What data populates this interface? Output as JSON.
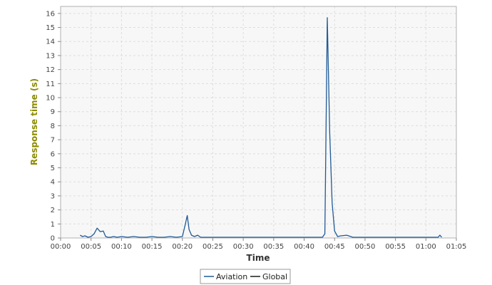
{
  "colors": {
    "aviation": "#1f5a96",
    "global": "#1a1a1a",
    "ylabel": "#8c8c00",
    "grid": "#dddddd",
    "plot_bg": "#f7f7f7"
  },
  "chart_data": {
    "type": "line",
    "xlabel": "Time",
    "ylabel": "Response time (s)",
    "x_unit": "minutes",
    "xlim": [
      0,
      65
    ],
    "ylim": [
      0,
      16.5
    ],
    "x_ticks": [
      {
        "value": 0,
        "label": "00:00"
      },
      {
        "value": 5,
        "label": "00:05"
      },
      {
        "value": 10,
        "label": "00:10"
      },
      {
        "value": 15,
        "label": "00:15"
      },
      {
        "value": 20,
        "label": "00:20"
      },
      {
        "value": 25,
        "label": "00:25"
      },
      {
        "value": 30,
        "label": "00:30"
      },
      {
        "value": 35,
        "label": "00:35"
      },
      {
        "value": 40,
        "label": "00:40"
      },
      {
        "value": 45,
        "label": "00:45"
      },
      {
        "value": 50,
        "label": "00:50"
      },
      {
        "value": 55,
        "label": "00:55"
      },
      {
        "value": 60,
        "label": "01:00"
      },
      {
        "value": 65,
        "label": "01:05"
      }
    ],
    "y_ticks": [
      0,
      1,
      2,
      3,
      4,
      5,
      6,
      7,
      8,
      9,
      10,
      11,
      12,
      13,
      14,
      15,
      16
    ],
    "grid": true,
    "legend_position": "bottom-center",
    "series": [
      {
        "name": "Aviation",
        "color": "#1f5a96",
        "points": [
          [
            3.2,
            0.2
          ],
          [
            3.6,
            0.1
          ],
          [
            4.0,
            0.15
          ],
          [
            4.5,
            0.05
          ],
          [
            5.0,
            0.1
          ],
          [
            5.5,
            0.3
          ],
          [
            6.0,
            0.7
          ],
          [
            6.5,
            0.45
          ],
          [
            7.0,
            0.5
          ],
          [
            7.4,
            0.1
          ],
          [
            7.8,
            0.05
          ],
          [
            8.2,
            0.05
          ],
          [
            8.7,
            0.1
          ],
          [
            9.3,
            0.05
          ],
          [
            10.0,
            0.1
          ],
          [
            11.0,
            0.05
          ],
          [
            12.0,
            0.1
          ],
          [
            13.0,
            0.05
          ],
          [
            14.0,
            0.05
          ],
          [
            15.0,
            0.1
          ],
          [
            16.0,
            0.05
          ],
          [
            17.0,
            0.05
          ],
          [
            18.0,
            0.1
          ],
          [
            19.0,
            0.05
          ],
          [
            20.0,
            0.1
          ],
          [
            20.5,
            1.0
          ],
          [
            20.8,
            1.6
          ],
          [
            21.1,
            0.6
          ],
          [
            21.5,
            0.2
          ],
          [
            22.0,
            0.1
          ],
          [
            22.5,
            0.2
          ],
          [
            23.0,
            0.05
          ],
          [
            24.0,
            0.05
          ],
          [
            25.0,
            0.05
          ],
          [
            26.0,
            0.05
          ],
          [
            28.0,
            0.05
          ],
          [
            30.0,
            0.05
          ],
          [
            32.0,
            0.05
          ],
          [
            34.0,
            0.05
          ],
          [
            36.0,
            0.05
          ],
          [
            38.0,
            0.05
          ],
          [
            40.0,
            0.05
          ],
          [
            42.0,
            0.05
          ],
          [
            43.0,
            0.05
          ],
          [
            43.4,
            0.3
          ],
          [
            43.8,
            15.7
          ],
          [
            44.2,
            7.5
          ],
          [
            44.6,
            2.5
          ],
          [
            45.0,
            0.5
          ],
          [
            45.5,
            0.1
          ],
          [
            46.0,
            0.15
          ],
          [
            47.0,
            0.2
          ],
          [
            48.0,
            0.05
          ],
          [
            50.0,
            0.05
          ],
          [
            52.0,
            0.05
          ],
          [
            54.0,
            0.05
          ],
          [
            56.0,
            0.05
          ],
          [
            58.0,
            0.05
          ],
          [
            60.0,
            0.05
          ],
          [
            62.0,
            0.05
          ],
          [
            62.3,
            0.2
          ],
          [
            62.6,
            0.05
          ]
        ]
      },
      {
        "name": "Global",
        "color": "#1a1a1a",
        "points": []
      }
    ]
  }
}
